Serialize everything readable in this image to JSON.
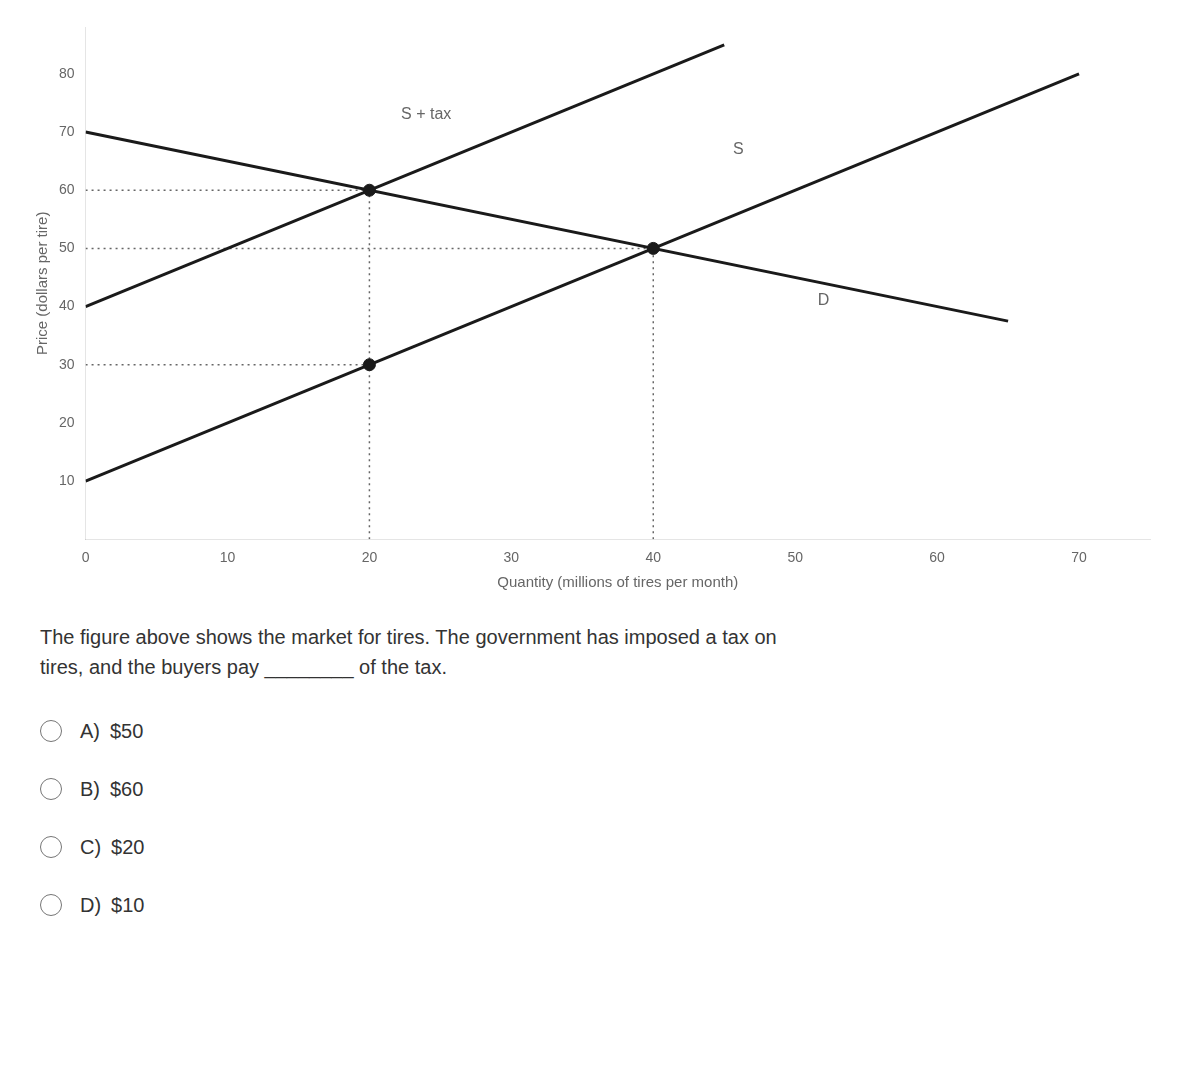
{
  "chart_data": {
    "type": "line",
    "xlabel": "Quantity (millions of tires per month)",
    "ylabel": "Price (dollars per tire)",
    "xlim": [
      0,
      75
    ],
    "ylim": [
      0,
      88
    ],
    "xticks": [
      0,
      10,
      20,
      30,
      40,
      50,
      60,
      70
    ],
    "yticks": [
      10,
      20,
      30,
      40,
      50,
      60,
      70,
      80
    ],
    "grid": false,
    "series": [
      {
        "type": "line",
        "line_style": "solid",
        "color": "#1a1a1a",
        "x": [
          0,
          70
        ],
        "values": [
          10,
          80
        ]
      },
      {
        "type": "line",
        "line_style": "solid",
        "color": "#1a1a1a",
        "x": [
          0,
          45
        ],
        "values": [
          40,
          85
        ]
      },
      {
        "type": "line",
        "line_style": "solid",
        "color": "#1a1a1a",
        "x": [
          0,
          65
        ],
        "values": [
          70,
          37.5
        ]
      },
      {
        "type": "line",
        "line_style": "dotted",
        "color": "#666666",
        "x": [
          20,
          20
        ],
        "values": [
          0,
          60
        ]
      },
      {
        "type": "line",
        "line_style": "dotted",
        "color": "#666666",
        "x": [
          40,
          40
        ],
        "values": [
          0,
          50
        ]
      },
      {
        "type": "line",
        "line_style": "dotted",
        "color": "#666666",
        "x": [
          0,
          20
        ],
        "values": [
          60,
          60
        ]
      },
      {
        "type": "line",
        "line_style": "dotted",
        "color": "#666666",
        "x": [
          0,
          40
        ],
        "values": [
          50,
          50
        ]
      },
      {
        "type": "line",
        "line_style": "dotted",
        "color": "#666666",
        "x": [
          0,
          20
        ],
        "values": [
          30,
          30
        ]
      },
      {
        "type": "scatter",
        "marker": "circle",
        "color": "#1a1a1a",
        "x": [
          20,
          20,
          40
        ],
        "values": [
          60,
          30,
          50
        ]
      }
    ],
    "annotations": [
      {
        "text": "S",
        "x": 46,
        "y": 67
      },
      {
        "text": "S + tax",
        "x": 24,
        "y": 73
      },
      {
        "text": "D",
        "x": 52,
        "y": 41
      }
    ],
    "question_text": [
      "The figure above shows the market for tires. The government has imposed a tax on",
      "tires, and the buyers pay ________ of the tax."
    ],
    "options": [
      "A) $50",
      "B) $60",
      "C) $20",
      "D) $10"
    ]
  }
}
